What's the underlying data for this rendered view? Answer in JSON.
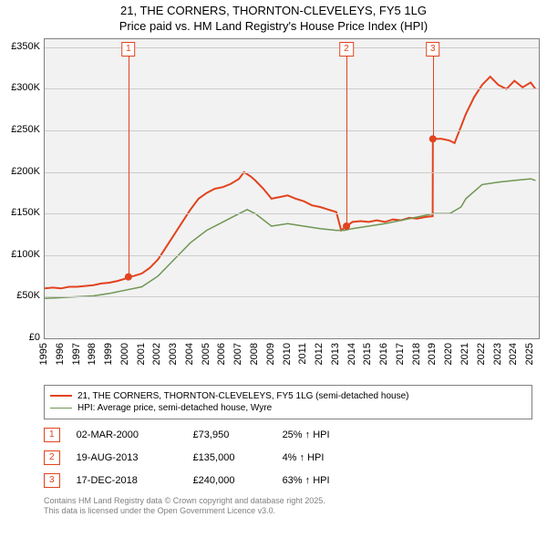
{
  "title_line1": "21, THE CORNERS, THORNTON-CLEVELEYS, FY5 1LG",
  "title_line2": "Price paid vs. HM Land Registry's House Price Index (HPI)",
  "chart": {
    "type": "line",
    "background_color": "#f2f2f2",
    "grid_color": "#cccccc",
    "axis_color": "#808080",
    "x_start_year": 1995,
    "x_end_year": 2025.5,
    "x_ticks_years": [
      1995,
      1996,
      1997,
      1998,
      1999,
      2000,
      2001,
      2002,
      2003,
      2004,
      2005,
      2006,
      2007,
      2008,
      2009,
      2010,
      2011,
      2012,
      2013,
      2014,
      2015,
      2016,
      2017,
      2018,
      2019,
      2020,
      2021,
      2022,
      2023,
      2024,
      2025
    ],
    "y_min": 0,
    "y_max": 360000,
    "y_ticks": [
      {
        "v": 0,
        "label": "£0"
      },
      {
        "v": 50000,
        "label": "£50K"
      },
      {
        "v": 100000,
        "label": "£100K"
      },
      {
        "v": 150000,
        "label": "£150K"
      },
      {
        "v": 200000,
        "label": "£200K"
      },
      {
        "v": 250000,
        "label": "£250K"
      },
      {
        "v": 300000,
        "label": "£300K"
      },
      {
        "v": 350000,
        "label": "£350K"
      }
    ],
    "series": [
      {
        "name": "21, THE CORNERS, THORNTON-CLEVELEYS, FY5 1LG (semi-detached house)",
        "color": "#e2431e",
        "width": 2,
        "data": [
          [
            1995,
            60000
          ],
          [
            1995.5,
            61000
          ],
          [
            1996,
            60000
          ],
          [
            1996.5,
            62000
          ],
          [
            1997,
            62000
          ],
          [
            1997.5,
            63000
          ],
          [
            1998,
            64000
          ],
          [
            1998.5,
            66000
          ],
          [
            1999,
            67000
          ],
          [
            1999.5,
            69000
          ],
          [
            2000,
            72000
          ],
          [
            2000.17,
            73950
          ],
          [
            2000.5,
            75000
          ],
          [
            2001,
            78000
          ],
          [
            2001.5,
            85000
          ],
          [
            2002,
            95000
          ],
          [
            2002.5,
            110000
          ],
          [
            2003,
            125000
          ],
          [
            2003.5,
            140000
          ],
          [
            2004,
            155000
          ],
          [
            2004.5,
            168000
          ],
          [
            2005,
            175000
          ],
          [
            2005.5,
            180000
          ],
          [
            2006,
            182000
          ],
          [
            2006.5,
            186000
          ],
          [
            2007,
            192000
          ],
          [
            2007.3,
            200000
          ],
          [
            2007.7,
            195000
          ],
          [
            2008,
            190000
          ],
          [
            2008.5,
            180000
          ],
          [
            2009,
            168000
          ],
          [
            2009.5,
            170000
          ],
          [
            2010,
            172000
          ],
          [
            2010.5,
            168000
          ],
          [
            2011,
            165000
          ],
          [
            2011.5,
            160000
          ],
          [
            2012,
            158000
          ],
          [
            2012.5,
            155000
          ],
          [
            2013,
            152000
          ],
          [
            2013.3,
            130000
          ],
          [
            2013.63,
            135000
          ],
          [
            2014,
            140000
          ],
          [
            2014.5,
            141000
          ],
          [
            2015,
            140000
          ],
          [
            2015.5,
            142000
          ],
          [
            2016,
            140000
          ],
          [
            2016.5,
            143000
          ],
          [
            2017,
            142000
          ],
          [
            2017.5,
            145000
          ],
          [
            2018,
            144000
          ],
          [
            2018.5,
            146000
          ],
          [
            2018.95,
            147000
          ],
          [
            2018.96,
            240000
          ],
          [
            2019.5,
            240000
          ],
          [
            2020,
            238000
          ],
          [
            2020.3,
            235000
          ],
          [
            2020.7,
            255000
          ],
          [
            2021,
            270000
          ],
          [
            2021.5,
            290000
          ],
          [
            2022,
            305000
          ],
          [
            2022.5,
            315000
          ],
          [
            2023,
            305000
          ],
          [
            2023.5,
            300000
          ],
          [
            2024,
            310000
          ],
          [
            2024.5,
            302000
          ],
          [
            2025,
            308000
          ],
          [
            2025.3,
            300000
          ]
        ]
      },
      {
        "name": "HPI: Average price, semi-detached house, Wyre",
        "color": "#6f9654",
        "width": 1.5,
        "data": [
          [
            1995,
            48000
          ],
          [
            1996,
            49000
          ],
          [
            1997,
            50000
          ],
          [
            1998,
            51000
          ],
          [
            1999,
            54000
          ],
          [
            2000,
            58000
          ],
          [
            2001,
            62000
          ],
          [
            2002,
            75000
          ],
          [
            2003,
            95000
          ],
          [
            2004,
            115000
          ],
          [
            2005,
            130000
          ],
          [
            2006,
            140000
          ],
          [
            2007,
            150000
          ],
          [
            2007.5,
            155000
          ],
          [
            2008,
            150000
          ],
          [
            2009,
            135000
          ],
          [
            2010,
            138000
          ],
          [
            2011,
            135000
          ],
          [
            2012,
            132000
          ],
          [
            2013,
            130000
          ],
          [
            2013.5,
            130000
          ],
          [
            2014,
            132000
          ],
          [
            2015,
            135000
          ],
          [
            2016,
            138000
          ],
          [
            2017,
            142000
          ],
          [
            2018,
            146000
          ],
          [
            2019,
            150000
          ],
          [
            2020,
            150000
          ],
          [
            2020.7,
            158000
          ],
          [
            2021,
            168000
          ],
          [
            2022,
            185000
          ],
          [
            2023,
            188000
          ],
          [
            2024,
            190000
          ],
          [
            2025,
            192000
          ],
          [
            2025.3,
            190000
          ]
        ]
      }
    ],
    "markers": [
      {
        "x": 2000.17,
        "y": 73950,
        "color": "#e2431e"
      },
      {
        "x": 2013.63,
        "y": 135000,
        "color": "#e2431e"
      },
      {
        "x": 2018.96,
        "y": 240000,
        "color": "#e2431e"
      }
    ],
    "callouts": [
      {
        "n": "1",
        "x": 2000.17,
        "marker_y": 73950
      },
      {
        "n": "2",
        "x": 2013.63,
        "marker_y": 135000
      },
      {
        "n": "3",
        "x": 2018.96,
        "marker_y": 240000
      }
    ]
  },
  "legend": {
    "items": [
      {
        "color": "#e2431e",
        "width": 2,
        "label": "21, THE CORNERS, THORNTON-CLEVELEYS, FY5 1LG (semi-detached house)"
      },
      {
        "color": "#6f9654",
        "width": 1.5,
        "label": "HPI: Average price, semi-detached house, Wyre"
      }
    ]
  },
  "transactions": [
    {
      "n": "1",
      "date": "02-MAR-2000",
      "price": "£73,950",
      "delta": "25% ↑ HPI"
    },
    {
      "n": "2",
      "date": "19-AUG-2013",
      "price": "£135,000",
      "delta": "4% ↑ HPI"
    },
    {
      "n": "3",
      "date": "17-DEC-2018",
      "price": "£240,000",
      "delta": "63% ↑ HPI"
    }
  ],
  "footer_line1": "Contains HM Land Registry data © Crown copyright and database right 2025.",
  "footer_line2": "This data is licensed under the Open Government Licence v3.0."
}
